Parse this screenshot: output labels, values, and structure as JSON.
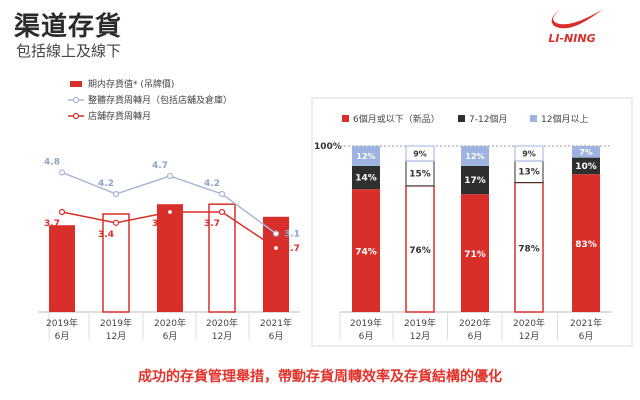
{
  "header": {
    "title": "渠道存貨",
    "subtitle": "包括線上及線下",
    "logo_text": "LI-NING"
  },
  "footer": {
    "text": "成功的存貨管理舉措，帶動存貨周轉效率及存貨結構的優化"
  },
  "colors": {
    "red": "#d92f2a",
    "dark": "#2f2f2f",
    "light_blue": "#9fb3e3",
    "line_grey_blue": "#a9b8d6",
    "outline_red": "#d92f2a"
  },
  "chart_data": [
    {
      "type": "bar",
      "categories": [
        "2019年\n6月",
        "2019年\n12月",
        "2020年\n6月",
        "2020年\n12月",
        "2021年\n6月"
      ],
      "legend": [
        "期内存貨值* (吊牌價)",
        "整體存貨周轉月（包括店舖及倉庫）",
        "店舗存貨周轉月"
      ],
      "series": [
        {
          "name": "期内存貨值* (吊牌價)",
          "type": "bar",
          "values": [
            0.62,
            0.7,
            0.77,
            0.77,
            0.68
          ],
          "hollow": [
            false,
            true,
            false,
            true,
            false
          ]
        },
        {
          "name": "整體存貨周轉月（包括店舖及倉庫）",
          "type": "line",
          "values": [
            4.8,
            4.2,
            4.7,
            4.2,
            3.1
          ]
        },
        {
          "name": "店舗存貨周轉月",
          "type": "line",
          "values": [
            3.7,
            3.4,
            3.7,
            3.7,
            2.7
          ]
        }
      ]
    },
    {
      "type": "bar",
      "stacked": true,
      "y_top_label": "100%",
      "categories": [
        "2019年\n6月",
        "2019年\n12月",
        "2020年\n6月",
        "2020年\n12月",
        "2021年\n6月"
      ],
      "legend": [
        "6個月或以下（新品）",
        "7-12個月",
        "12個月以上"
      ],
      "hollow": [
        false,
        true,
        false,
        true,
        false
      ],
      "series": [
        {
          "name": "6個月或以下（新品）",
          "values": [
            74,
            76,
            71,
            78,
            83
          ],
          "labels": [
            "74%",
            "76%",
            "71%",
            "78%",
            "83%"
          ]
        },
        {
          "name": "7-12個月",
          "values": [
            14,
            15,
            17,
            13,
            10
          ],
          "labels": [
            "14%",
            "15%",
            "17%",
            "13%",
            "10%"
          ]
        },
        {
          "name": "12個月以上",
          "values": [
            12,
            9,
            12,
            9,
            7
          ],
          "labels": [
            "12%",
            "9%",
            "12%",
            "9%",
            "7%"
          ]
        }
      ]
    }
  ]
}
